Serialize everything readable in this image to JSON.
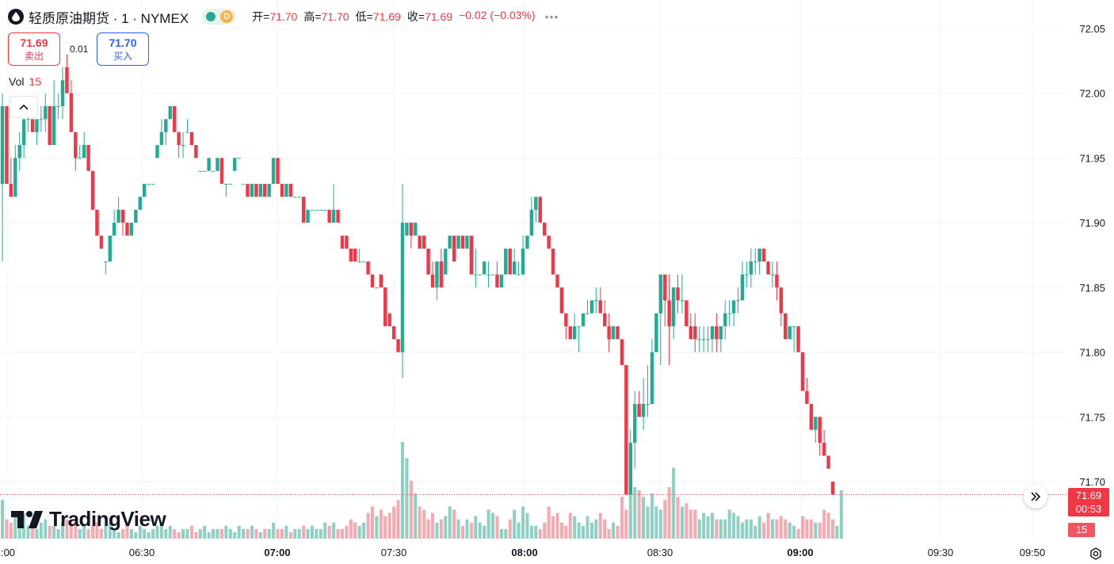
{
  "header": {
    "symbol_title": "轻质原油期货 · 1 · NYMEX",
    "status_letter": "D",
    "ohlc": [
      {
        "label": "开=",
        "value": "71.70"
      },
      {
        "label": "高=",
        "value": "71.70"
      },
      {
        "label": "低=",
        "value": "71.69"
      },
      {
        "label": "收=",
        "value": "71.69"
      },
      {
        "label": "",
        "value": "−0.02 (−0.03%)"
      }
    ],
    "more": "•••"
  },
  "trade": {
    "sell_price": "71.69",
    "sell_label": "卖出",
    "spread": "0.01",
    "buy_price": "71.70",
    "buy_label": "买入"
  },
  "volume_legend": {
    "label": "Vol",
    "value": "15"
  },
  "logo_text": "TradingView",
  "price_axis": {
    "current_price": "71.69",
    "countdown": "00:53",
    "current_volume": "15"
  },
  "time_axis": [
    {
      "label": ":00",
      "bold": false
    },
    {
      "label": "06:30",
      "bold": false
    },
    {
      "label": "07:00",
      "bold": true
    },
    {
      "label": "07:30",
      "bold": false
    },
    {
      "label": "08:00",
      "bold": true
    },
    {
      "label": "08:30",
      "bold": false
    },
    {
      "label": "09:00",
      "bold": true
    },
    {
      "label": "09:30",
      "bold": false
    },
    {
      "label": "09:50",
      "bold": false
    }
  ],
  "colors": {
    "up": "#22ab94",
    "down": "#f23645",
    "up_vol": "#8fd0c4",
    "down_vol": "#f7a9b0",
    "grid": "#f0f3fa"
  },
  "chart_data": {
    "type": "candlestick",
    "interval": "1 minute",
    "y_range": [
      71.68,
      72.06
    ],
    "y_ticks": [
      "72.05",
      "72.00",
      "71.95",
      "71.90",
      "71.85",
      "71.80",
      "71.75",
      "71.70"
    ],
    "x_ticks": [
      ":00",
      "06:30",
      "07:00",
      "07:30",
      "08:00",
      "08:30",
      "09:00",
      "09:30",
      "09:50"
    ],
    "candles": [
      [
        71.93,
        72.0,
        71.87,
        71.99
      ],
      [
        71.99,
        71.99,
        71.93,
        71.93
      ],
      [
        71.93,
        71.95,
        71.92,
        71.92
      ],
      [
        71.92,
        71.96,
        71.92,
        71.95
      ],
      [
        71.95,
        71.97,
        71.94,
        71.96
      ],
      [
        71.96,
        71.98,
        71.95,
        71.98
      ],
      [
        71.98,
        71.99,
        71.97,
        71.98
      ],
      [
        71.98,
        71.98,
        71.97,
        71.97
      ],
      [
        71.97,
        71.98,
        71.96,
        71.98
      ],
      [
        71.98,
        71.99,
        71.97,
        71.98
      ],
      [
        71.98,
        72.0,
        71.97,
        71.99
      ],
      [
        71.99,
        71.99,
        71.96,
        71.96
      ],
      [
        71.96,
        72.01,
        71.96,
        71.99
      ],
      [
        71.99,
        72.0,
        71.98,
        71.99
      ],
      [
        71.99,
        72.02,
        71.98,
        72.01
      ],
      [
        72.02,
        72.03,
        72.0,
        72.0
      ],
      [
        72.0,
        72.01,
        71.97,
        71.97
      ],
      [
        71.97,
        71.97,
        71.94,
        71.95
      ],
      [
        71.95,
        71.96,
        71.95,
        71.95
      ],
      [
        71.95,
        71.97,
        71.95,
        71.96
      ],
      [
        71.96,
        71.96,
        71.94,
        71.94
      ],
      [
        71.94,
        71.94,
        71.91,
        71.91
      ],
      [
        71.91,
        71.91,
        71.89,
        71.89
      ],
      [
        71.89,
        71.89,
        71.88,
        71.88
      ],
      [
        71.87,
        71.87,
        71.86,
        71.87
      ],
      [
        71.87,
        71.89,
        71.87,
        71.89
      ],
      [
        71.89,
        71.91,
        71.89,
        71.9
      ],
      [
        71.9,
        71.92,
        71.9,
        71.91
      ],
      [
        71.91,
        71.91,
        71.89,
        71.9
      ],
      [
        71.9,
        71.9,
        71.89,
        71.89
      ],
      [
        71.89,
        71.9,
        71.89,
        71.9
      ],
      [
        71.9,
        71.91,
        71.9,
        71.91
      ],
      [
        71.91,
        71.92,
        71.91,
        71.92
      ],
      [
        71.92,
        71.93,
        71.92,
        71.93
      ],
      [
        71.93,
        71.93,
        71.93,
        71.93
      ],
      [
        71.93,
        71.93,
        71.93,
        71.93
      ],
      [
        71.95,
        71.96,
        71.95,
        71.96
      ],
      [
        71.96,
        71.98,
        71.96,
        71.97
      ],
      [
        71.97,
        71.98,
        71.96,
        71.98
      ],
      [
        71.98,
        71.99,
        71.98,
        71.99
      ],
      [
        71.99,
        71.99,
        71.97,
        71.97
      ],
      [
        71.97,
        71.97,
        71.95,
        71.96
      ],
      [
        71.96,
        71.97,
        71.95,
        71.96
      ],
      [
        71.97,
        71.98,
        71.97,
        71.97
      ],
      [
        71.97,
        71.97,
        71.96,
        71.96
      ],
      [
        71.96,
        71.96,
        71.95,
        71.95
      ],
      [
        71.94,
        71.94,
        71.94,
        71.94
      ],
      [
        71.94,
        71.94,
        71.94,
        71.94
      ],
      [
        71.94,
        71.95,
        71.94,
        71.95
      ],
      [
        71.94,
        71.94,
        71.94,
        71.94
      ],
      [
        71.94,
        71.95,
        71.94,
        71.95
      ],
      [
        71.95,
        71.95,
        71.93,
        71.93
      ],
      [
        71.93,
        71.93,
        71.92,
        71.93
      ],
      [
        71.93,
        71.93,
        71.93,
        71.93
      ],
      [
        71.94,
        71.95,
        71.94,
        71.95
      ],
      [
        71.95,
        71.95,
        71.95,
        71.95
      ],
      [
        71.93,
        71.93,
        71.93,
        71.93
      ],
      [
        71.93,
        71.93,
        71.92,
        71.92
      ],
      [
        71.92,
        71.93,
        71.92,
        71.93
      ],
      [
        71.93,
        71.93,
        71.92,
        71.92
      ],
      [
        71.92,
        71.93,
        71.92,
        71.93
      ],
      [
        71.93,
        71.93,
        71.92,
        71.92
      ],
      [
        71.92,
        71.93,
        71.92,
        71.93
      ],
      [
        71.93,
        71.95,
        71.93,
        71.95
      ],
      [
        71.95,
        71.95,
        71.93,
        71.93
      ],
      [
        71.93,
        71.93,
        71.92,
        71.92
      ],
      [
        71.92,
        71.93,
        71.92,
        71.93
      ],
      [
        71.93,
        71.93,
        71.92,
        71.92
      ],
      [
        71.92,
        71.92,
        71.92,
        71.92
      ],
      [
        71.92,
        71.92,
        71.92,
        71.92
      ],
      [
        71.92,
        71.92,
        71.9,
        71.9
      ],
      [
        71.9,
        71.91,
        71.9,
        71.91
      ],
      [
        71.91,
        71.91,
        71.91,
        71.91
      ],
      [
        71.91,
        71.91,
        71.91,
        71.91
      ],
      [
        71.91,
        71.91,
        71.91,
        71.91
      ],
      [
        71.91,
        71.91,
        71.91,
        71.91
      ],
      [
        71.91,
        71.91,
        71.9,
        71.9
      ],
      [
        71.9,
        71.93,
        71.9,
        71.91
      ],
      [
        71.91,
        71.91,
        71.9,
        71.9
      ],
      [
        71.89,
        71.89,
        71.88,
        71.88
      ],
      [
        71.89,
        71.89,
        71.88,
        71.88
      ],
      [
        71.88,
        71.88,
        71.87,
        71.87
      ],
      [
        71.88,
        71.88,
        71.87,
        71.87
      ],
      [
        71.87,
        71.88,
        71.87,
        71.87
      ],
      [
        71.87,
        71.87,
        71.87,
        71.87
      ],
      [
        71.87,
        71.87,
        71.86,
        71.86
      ],
      [
        71.86,
        71.86,
        71.85,
        71.85
      ],
      [
        71.85,
        71.85,
        71.85,
        71.85
      ],
      [
        71.86,
        71.86,
        71.85,
        71.85
      ],
      [
        71.85,
        71.85,
        71.82,
        71.82
      ],
      [
        71.83,
        71.83,
        71.82,
        71.82
      ],
      [
        71.82,
        71.82,
        71.81,
        71.81
      ],
      [
        71.81,
        71.81,
        71.8,
        71.8
      ],
      [
        71.8,
        71.93,
        71.78,
        71.9
      ],
      [
        71.89,
        71.9,
        71.89,
        71.9
      ],
      [
        71.9,
        71.9,
        71.88,
        71.89
      ],
      [
        71.89,
        71.9,
        71.89,
        71.9
      ],
      [
        71.89,
        71.89,
        71.88,
        71.88
      ],
      [
        71.89,
        71.89,
        71.88,
        71.88
      ],
      [
        71.88,
        71.88,
        71.86,
        71.86
      ],
      [
        71.86,
        71.87,
        71.85,
        71.85
      ],
      [
        71.85,
        71.87,
        71.84,
        71.87
      ],
      [
        71.87,
        71.88,
        71.85,
        71.85
      ],
      [
        71.86,
        71.88,
        71.86,
        71.88
      ],
      [
        71.88,
        71.89,
        71.88,
        71.89
      ],
      [
        71.89,
        71.89,
        71.87,
        71.87
      ],
      [
        71.88,
        71.89,
        71.88,
        71.89
      ],
      [
        71.89,
        71.89,
        71.88,
        71.88
      ],
      [
        71.88,
        71.89,
        71.88,
        71.89
      ],
      [
        71.89,
        71.89,
        71.86,
        71.86
      ],
      [
        71.86,
        71.88,
        71.85,
        71.86
      ],
      [
        71.86,
        71.86,
        71.86,
        71.86
      ],
      [
        71.86,
        71.87,
        71.86,
        71.87
      ],
      [
        71.86,
        71.87,
        71.85,
        71.86
      ],
      [
        71.86,
        71.86,
        71.86,
        71.86
      ],
      [
        71.86,
        71.87,
        71.85,
        71.85
      ],
      [
        71.85,
        71.86,
        71.85,
        71.86
      ],
      [
        71.86,
        71.88,
        71.86,
        71.88
      ],
      [
        71.88,
        71.88,
        71.86,
        71.86
      ],
      [
        71.86,
        71.88,
        71.86,
        71.87
      ],
      [
        71.86,
        71.87,
        71.86,
        71.86
      ],
      [
        71.86,
        71.89,
        71.86,
        71.88
      ],
      [
        71.88,
        71.89,
        71.88,
        71.89
      ],
      [
        71.89,
        71.92,
        71.89,
        71.91
      ],
      [
        71.91,
        71.92,
        71.9,
        71.92
      ],
      [
        71.92,
        71.92,
        71.9,
        71.9
      ],
      [
        71.9,
        71.9,
        71.89,
        71.89
      ],
      [
        71.89,
        71.89,
        71.88,
        71.88
      ],
      [
        71.88,
        71.88,
        71.86,
        71.86
      ],
      [
        71.86,
        71.86,
        71.85,
        71.85
      ],
      [
        71.85,
        71.85,
        71.83,
        71.83
      ],
      [
        71.83,
        71.83,
        71.81,
        71.82
      ],
      [
        71.82,
        71.82,
        71.81,
        71.81
      ],
      [
        71.81,
        71.83,
        71.81,
        71.82
      ],
      [
        71.82,
        71.82,
        71.8,
        71.82
      ],
      [
        71.82,
        71.83,
        71.82,
        71.83
      ],
      [
        71.83,
        71.84,
        71.83,
        71.83
      ],
      [
        71.83,
        71.84,
        71.83,
        71.84
      ],
      [
        71.84,
        71.85,
        71.83,
        71.84
      ],
      [
        71.84,
        71.85,
        71.83,
        71.83
      ],
      [
        71.83,
        71.84,
        71.82,
        71.82
      ],
      [
        71.82,
        71.83,
        71.8,
        71.81
      ],
      [
        71.81,
        71.82,
        71.81,
        71.82
      ],
      [
        71.82,
        71.82,
        71.81,
        71.81
      ],
      [
        71.81,
        71.81,
        71.79,
        71.79
      ],
      [
        71.79,
        71.79,
        71.69,
        71.69
      ],
      [
        71.69,
        71.74,
        71.69,
        71.73
      ],
      [
        71.73,
        71.77,
        71.71,
        71.76
      ],
      [
        71.76,
        71.77,
        71.75,
        71.75
      ],
      [
        71.75,
        71.78,
        71.74,
        71.76
      ],
      [
        71.76,
        71.79,
        71.75,
        71.76
      ],
      [
        71.76,
        71.81,
        71.76,
        71.8
      ],
      [
        71.8,
        71.83,
        71.8,
        71.83
      ],
      [
        71.83,
        71.86,
        71.79,
        71.86
      ],
      [
        71.86,
        71.86,
        71.82,
        71.84
      ],
      [
        71.84,
        71.86,
        71.79,
        71.82
      ],
      [
        71.82,
        71.85,
        71.81,
        71.85
      ],
      [
        71.85,
        71.86,
        71.83,
        71.84
      ],
      [
        71.84,
        71.86,
        71.83,
        71.84
      ],
      [
        71.84,
        71.84,
        71.82,
        71.82
      ],
      [
        71.82,
        71.83,
        71.81,
        71.81
      ],
      [
        71.82,
        71.83,
        71.8,
        71.81
      ],
      [
        71.81,
        71.82,
        71.8,
        71.81
      ],
      [
        71.81,
        71.82,
        71.8,
        71.81
      ],
      [
        71.81,
        71.82,
        71.8,
        71.81
      ],
      [
        71.81,
        71.82,
        71.8,
        71.82
      ],
      [
        71.82,
        71.83,
        71.8,
        71.81
      ],
      [
        71.81,
        71.82,
        71.8,
        71.82
      ],
      [
        71.82,
        71.84,
        71.81,
        71.83
      ],
      [
        71.83,
        71.84,
        71.82,
        71.83
      ],
      [
        71.83,
        71.84,
        71.82,
        71.84
      ],
      [
        71.84,
        71.85,
        71.83,
        71.84
      ],
      [
        71.84,
        71.87,
        71.84,
        71.86
      ],
      [
        71.86,
        71.87,
        71.85,
        71.86
      ],
      [
        71.86,
        71.88,
        71.85,
        71.87
      ],
      [
        71.87,
        71.88,
        71.86,
        71.87
      ],
      [
        71.87,
        71.88,
        71.86,
        71.88
      ],
      [
        71.88,
        71.88,
        71.87,
        71.87
      ],
      [
        71.87,
        71.87,
        71.86,
        71.86
      ],
      [
        71.86,
        71.87,
        71.85,
        71.86
      ],
      [
        71.86,
        71.87,
        71.84,
        71.85
      ],
      [
        71.85,
        71.85,
        71.82,
        71.83
      ],
      [
        71.83,
        71.83,
        71.81,
        71.81
      ],
      [
        71.81,
        71.82,
        71.81,
        71.82
      ],
      [
        71.82,
        71.82,
        71.8,
        71.82
      ],
      [
        71.82,
        71.82,
        71.8,
        71.8
      ],
      [
        71.8,
        71.8,
        71.77,
        71.77
      ],
      [
        71.77,
        71.78,
        71.76,
        71.76
      ],
      [
        71.76,
        71.76,
        71.74,
        71.74
      ],
      [
        71.74,
        71.75,
        71.73,
        71.75
      ],
      [
        71.75,
        71.75,
        71.72,
        71.73
      ],
      [
        71.73,
        71.74,
        71.72,
        71.72
      ],
      [
        71.72,
        71.72,
        71.71,
        71.71
      ],
      [
        71.7,
        71.7,
        71.69,
        71.69
      ]
    ],
    "volumes": [
      12,
      6,
      5,
      7,
      3,
      8,
      4,
      5,
      3,
      5,
      6,
      4,
      4,
      3,
      5,
      6,
      4,
      5,
      3,
      4,
      3,
      4,
      5,
      3,
      4,
      5,
      3,
      2,
      3,
      4,
      3,
      2,
      4,
      3,
      2,
      3,
      4,
      5,
      3,
      4,
      3,
      2,
      3,
      3,
      4,
      2,
      3,
      4,
      2,
      3,
      3,
      3,
      4,
      3,
      2,
      4,
      3,
      3,
      4,
      3,
      2,
      3,
      3,
      5,
      3,
      3,
      4,
      2,
      3,
      3,
      4,
      3,
      4,
      3,
      3,
      5,
      4,
      5,
      3,
      3,
      4,
      6,
      5,
      4,
      5,
      8,
      10,
      7,
      9,
      7,
      8,
      10,
      12,
      30,
      25,
      18,
      14,
      10,
      9,
      6,
      8,
      5,
      6,
      7,
      10,
      9,
      6,
      4,
      6,
      5,
      7,
      5,
      4,
      9,
      8,
      7,
      3,
      3,
      6,
      9,
      5,
      10,
      8,
      4,
      4,
      3,
      5,
      10,
      7,
      8,
      5,
      4,
      8,
      7,
      5,
      4,
      7,
      5,
      6,
      8,
      6,
      3,
      5,
      4,
      13,
      9,
      18,
      16,
      15,
      13,
      10,
      14,
      10,
      9,
      12,
      16,
      22,
      13,
      10,
      11,
      9,
      9,
      6,
      8,
      7,
      8,
      6,
      6,
      6,
      9,
      8,
      7,
      5,
      6,
      6,
      4,
      7,
      5,
      8,
      6,
      6,
      7,
      6,
      5,
      4,
      3,
      7,
      6,
      6,
      5,
      5,
      9,
      8,
      6,
      4,
      15
    ]
  }
}
